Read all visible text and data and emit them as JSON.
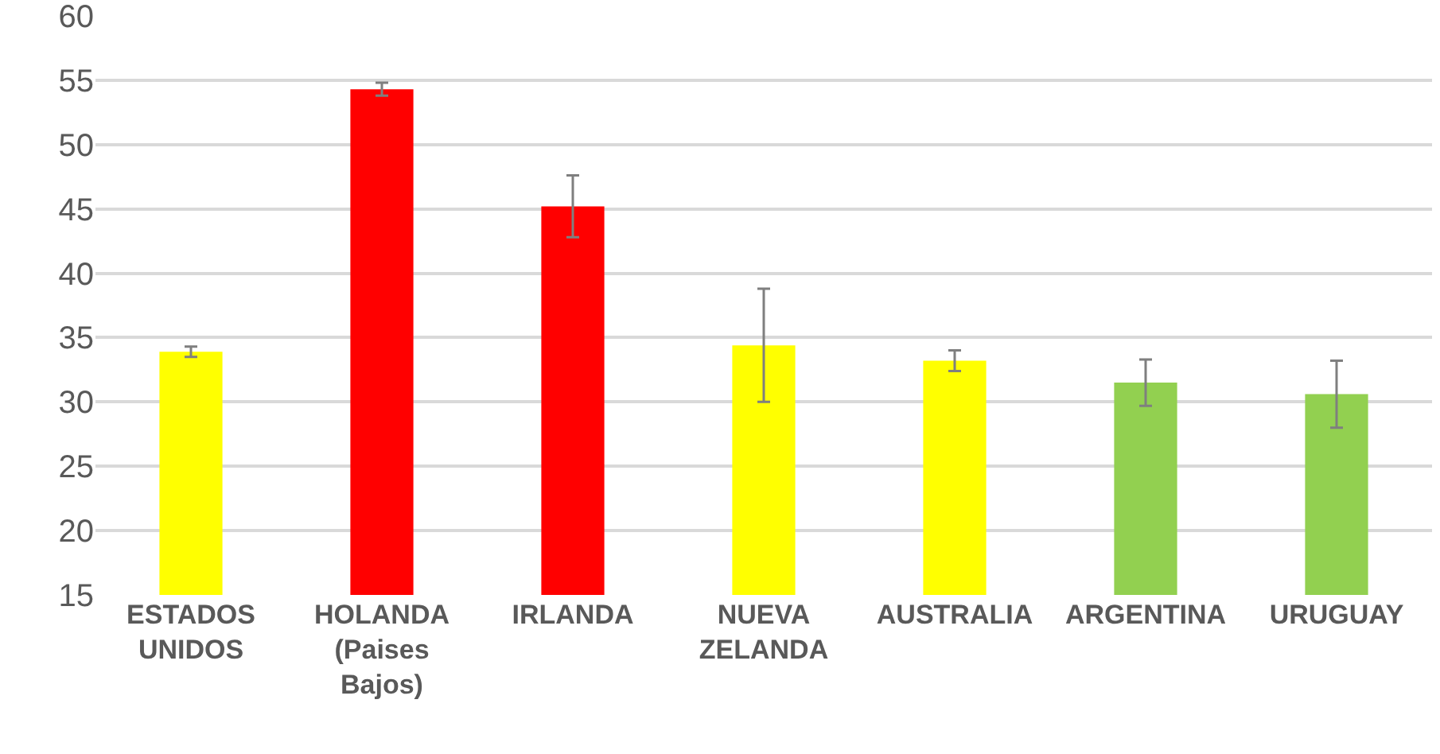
{
  "chart_data": {
    "type": "bar",
    "categories": [
      "ESTADOS\nUNIDOS",
      "HOLANDA\n(Paises\nBajos)",
      "IRLANDA",
      "NUEVA\nZELANDA",
      "AUSTRALIA",
      "ARGENTINA",
      "URUGUAY"
    ],
    "values": [
      33.9,
      54.3,
      45.2,
      34.4,
      33.2,
      31.5,
      30.6
    ],
    "colors": [
      "#ffff00",
      "#ff0000",
      "#ff0000",
      "#ffff00",
      "#ffff00",
      "#92d050",
      "#92d050"
    ],
    "errors": [
      0.4,
      0.5,
      2.4,
      4.4,
      0.8,
      1.8,
      2.6
    ],
    "ylim": [
      15,
      60
    ],
    "yticks": [
      15,
      20,
      25,
      30,
      35,
      40,
      45,
      50,
      55,
      60
    ],
    "grid": "y",
    "legend": false
  }
}
